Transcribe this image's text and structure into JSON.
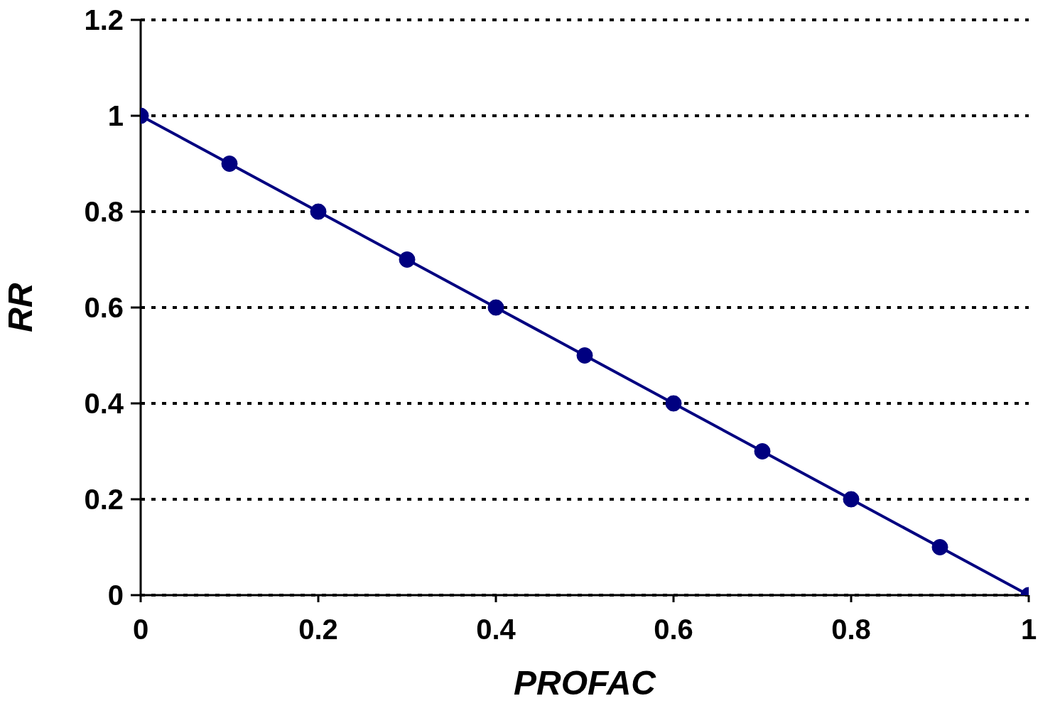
{
  "chart_data": {
    "type": "line",
    "xlabel": "PROFAC",
    "ylabel": "RR",
    "x": [
      0,
      0.1,
      0.2,
      0.3,
      0.4,
      0.5,
      0.6,
      0.7,
      0.8,
      0.9,
      1
    ],
    "series": [
      {
        "color": "#000080",
        "values": [
          1,
          0.9,
          0.8,
          0.7,
          0.6,
          0.5,
          0.4,
          0.3,
          0.2,
          0.1,
          0
        ]
      }
    ],
    "xlim": [
      0,
      1
    ],
    "xticks": [
      0,
      0.2,
      0.4,
      0.6,
      0.8,
      1
    ],
    "ylim": [
      0,
      1.2
    ],
    "yticks": [
      0,
      0.2,
      0.4,
      0.6,
      0.8,
      1,
      1.2
    ],
    "grid": "y",
    "legend": false,
    "marker": "circle",
    "line_style": "solid"
  }
}
